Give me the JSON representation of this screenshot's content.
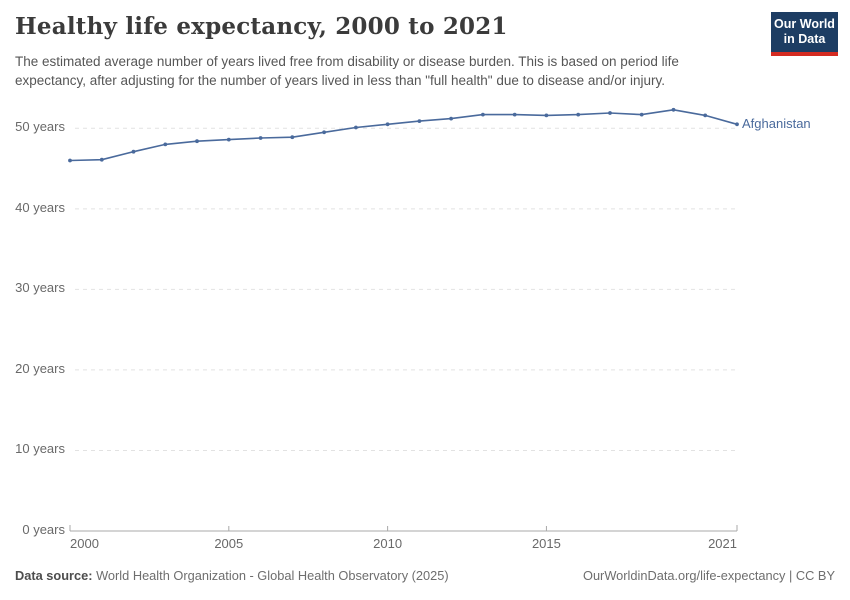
{
  "header": {
    "title": "Healthy life expectancy, 2000 to 2021",
    "subtitle_line1": "The estimated average number of years lived free from disability or disease burden. This is based on period life",
    "subtitle_line2": "expectancy, after adjusting for the number of years lived in less than \"full health\" due to disease and/or injury.",
    "logo_line1": "Our World",
    "logo_line2": "in Data"
  },
  "chart_data": {
    "type": "line",
    "title": "Healthy life expectancy, 2000 to 2021",
    "xlabel": "",
    "ylabel": "years",
    "x": [
      2000,
      2001,
      2002,
      2003,
      2004,
      2005,
      2006,
      2007,
      2008,
      2009,
      2010,
      2011,
      2012,
      2013,
      2014,
      2015,
      2016,
      2017,
      2018,
      2019,
      2020,
      2021
    ],
    "series": [
      {
        "name": "Afghanistan",
        "color": "#4a6a9c",
        "values": [
          46.0,
          46.1,
          47.1,
          48.0,
          48.4,
          48.6,
          48.8,
          48.9,
          49.5,
          50.1,
          50.5,
          50.9,
          51.2,
          51.7,
          51.7,
          51.6,
          51.7,
          51.9,
          51.7,
          52.3,
          51.6,
          50.5
        ]
      }
    ],
    "ylim": [
      0,
      52.3
    ],
    "grid": "horizontal-dashed",
    "legend_position": "end-of-line-label",
    "y_ticks": [
      {
        "v": 0,
        "label": "0 years"
      },
      {
        "v": 10,
        "label": "10 years"
      },
      {
        "v": 20,
        "label": "20 years"
      },
      {
        "v": 30,
        "label": "30 years"
      },
      {
        "v": 40,
        "label": "40 years"
      },
      {
        "v": 50,
        "label": "50 years"
      }
    ],
    "x_ticks": [
      {
        "v": 2000,
        "label": "2000",
        "align": "left"
      },
      {
        "v": 2005,
        "label": "2005",
        "align": "center"
      },
      {
        "v": 2010,
        "label": "2010",
        "align": "center"
      },
      {
        "v": 2015,
        "label": "2015",
        "align": "center"
      },
      {
        "v": 2021,
        "label": "2021",
        "align": "right"
      }
    ],
    "entity_label": "Afghanistan"
  },
  "footer": {
    "source_label": "Data source:",
    "source_text": " World Health Organization - Global Health Observatory (2025)",
    "credit": "OurWorldinData.org/life-expectancy | CC BY"
  },
  "colors": {
    "line": "#4a6a9c",
    "grid": "#e2e2e2",
    "axis": "#a8a8a8",
    "logo_bg": "#1d3d63",
    "logo_underline": "#d42b21"
  }
}
